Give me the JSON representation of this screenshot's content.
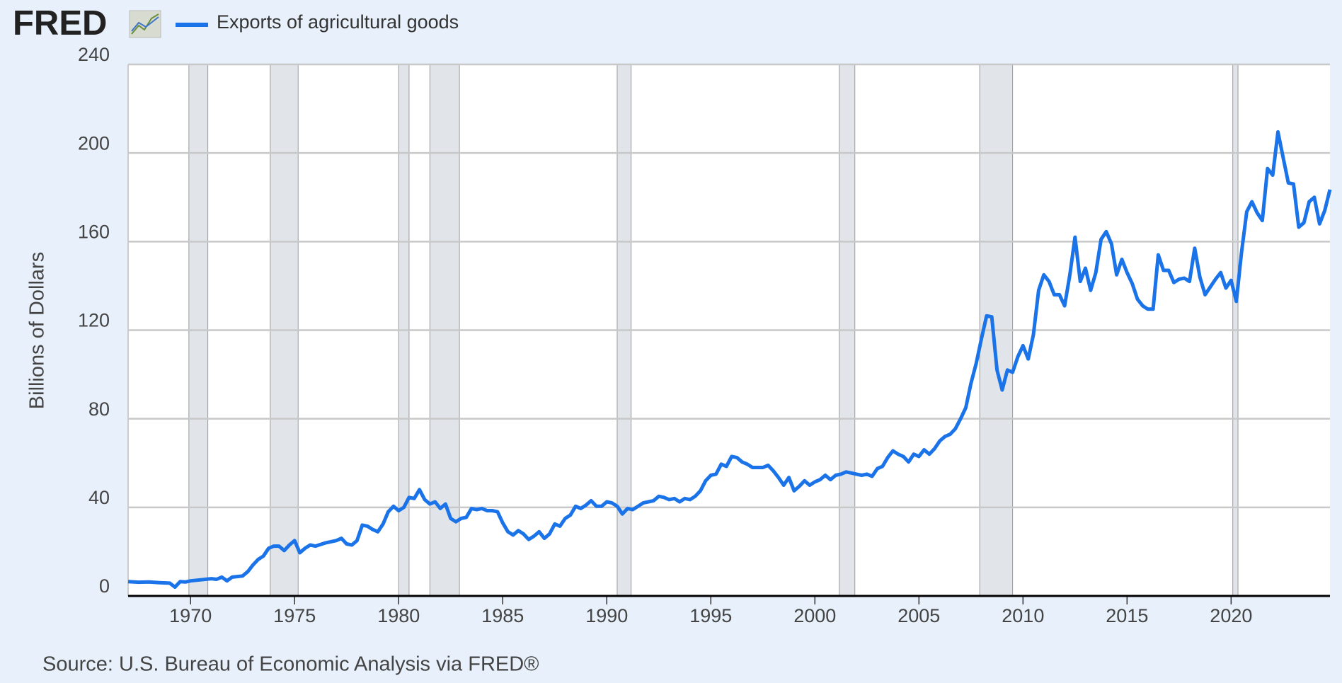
{
  "chart_data": {
    "type": "line",
    "logo": "FRED",
    "source": "Source: U.S. Bureau of Economic Analysis via FRED®",
    "ylabel": "Billions of Dollars",
    "xlim": [
      1967,
      2024.75
    ],
    "xticks": [
      1970,
      1975,
      1980,
      1985,
      1990,
      1995,
      2000,
      2005,
      2010,
      2015,
      2020
    ],
    "ylim": [
      0,
      240
    ],
    "yticks": [
      0,
      40,
      80,
      120,
      160,
      200,
      240
    ],
    "grid": true,
    "recessions": [
      [
        1969.92,
        1970.83
      ],
      [
        1973.83,
        1975.17
      ],
      [
        1980.0,
        1980.5
      ],
      [
        1981.5,
        1982.92
      ],
      [
        1990.5,
        1991.17
      ],
      [
        2001.17,
        2001.92
      ],
      [
        2007.92,
        2009.5
      ],
      [
        2020.08,
        2020.33
      ]
    ],
    "recession_color": "#e1e5ea",
    "x": [
      1967.0,
      1967.5,
      1968.0,
      1968.5,
      1969.0,
      1969.25,
      1969.5,
      1969.75,
      1970.0,
      1970.5,
      1971.0,
      1971.25,
      1971.5,
      1971.75,
      1972.0,
      1972.5,
      1972.75,
      1973.0,
      1973.25,
      1973.5,
      1973.75,
      1974.0,
      1974.25,
      1974.5,
      1974.75,
      1975.0,
      1975.25,
      1975.5,
      1975.75,
      1976.0,
      1976.5,
      1977.0,
      1977.25,
      1977.5,
      1977.75,
      1978.0,
      1978.25,
      1978.5,
      1978.75,
      1979.0,
      1979.25,
      1979.5,
      1979.75,
      1980.0,
      1980.25,
      1980.5,
      1980.75,
      1981.0,
      1981.25,
      1981.5,
      1981.75,
      1982.0,
      1982.25,
      1982.5,
      1982.75,
      1983.0,
      1983.25,
      1983.5,
      1983.75,
      1984.0,
      1984.25,
      1984.5,
      1984.75,
      1985.0,
      1985.25,
      1985.5,
      1985.75,
      1986.0,
      1986.25,
      1986.5,
      1986.75,
      1987.0,
      1987.25,
      1987.5,
      1987.75,
      1988.0,
      1988.25,
      1988.5,
      1988.75,
      1989.0,
      1989.25,
      1989.5,
      1989.75,
      1990.0,
      1990.25,
      1990.5,
      1990.75,
      1991.0,
      1991.25,
      1991.5,
      1991.75,
      1992.0,
      1992.25,
      1992.5,
      1992.75,
      1993.0,
      1993.25,
      1993.5,
      1993.75,
      1994.0,
      1994.25,
      1994.5,
      1994.75,
      1995.0,
      1995.25,
      1995.5,
      1995.75,
      1996.0,
      1996.25,
      1996.5,
      1996.75,
      1997.0,
      1997.25,
      1997.5,
      1997.75,
      1998.0,
      1998.25,
      1998.5,
      1998.75,
      1999.0,
      1999.25,
      1999.5,
      1999.75,
      2000.0,
      2000.25,
      2000.5,
      2000.75,
      2001.0,
      2001.25,
      2001.5,
      2001.75,
      2002.0,
      2002.25,
      2002.5,
      2002.75,
      2003.0,
      2003.25,
      2003.5,
      2003.75,
      2004.0,
      2004.25,
      2004.5,
      2004.75,
      2005.0,
      2005.25,
      2005.5,
      2005.75,
      2006.0,
      2006.25,
      2006.5,
      2006.75,
      2007.0,
      2007.25,
      2007.5,
      2007.75,
      2008.0,
      2008.25,
      2008.5,
      2008.75,
      2009.0,
      2009.25,
      2009.5,
      2009.75,
      2010.0,
      2010.25,
      2010.5,
      2010.75,
      2011.0,
      2011.25,
      2011.5,
      2011.75,
      2012.0,
      2012.25,
      2012.5,
      2012.75,
      2013.0,
      2013.25,
      2013.5,
      2013.75,
      2014.0,
      2014.25,
      2014.5,
      2014.75,
      2015.0,
      2015.25,
      2015.5,
      2015.75,
      2016.0,
      2016.25,
      2016.5,
      2016.75,
      2017.0,
      2017.25,
      2017.5,
      2017.75,
      2018.0,
      2018.25,
      2018.5,
      2018.75,
      2019.0,
      2019.25,
      2019.5,
      2019.75,
      2020.0,
      2020.25,
      2020.5,
      2020.75,
      2021.0,
      2021.25,
      2021.5,
      2021.75,
      2022.0,
      2022.25,
      2022.5,
      2022.75,
      2023.0,
      2023.25,
      2023.5,
      2023.75,
      2024.0,
      2024.25,
      2024.5,
      2024.75
    ],
    "series": [
      {
        "name": "Exports of agricultural goods",
        "color": "#1a73e8",
        "values": [
          6.5,
          6.2,
          6.3,
          6.0,
          5.8,
          4.0,
          6.5,
          6.3,
          6.8,
          7.3,
          7.8,
          7.5,
          8.5,
          6.8,
          8.5,
          9.0,
          11,
          14,
          16.5,
          18,
          21.5,
          22.5,
          22.5,
          20.5,
          23,
          25,
          19.5,
          21.5,
          23,
          22.5,
          24,
          25,
          26,
          23.5,
          23,
          25,
          32,
          31.5,
          30,
          29,
          32.5,
          38,
          40.5,
          38.5,
          40,
          44.5,
          44,
          48,
          43.5,
          41.5,
          42.5,
          39.5,
          41.5,
          35,
          33.5,
          35,
          35.5,
          39.5,
          39,
          39.5,
          38.5,
          38.5,
          38,
          33,
          29,
          27.5,
          29.5,
          28,
          25.5,
          27,
          29,
          26,
          28,
          32.5,
          31.5,
          35,
          36.5,
          40.5,
          39.5,
          41,
          43,
          40.5,
          40.5,
          42.5,
          42,
          40.5,
          37,
          39.5,
          39,
          40.5,
          42,
          42.5,
          43,
          45,
          44.5,
          43.5,
          44,
          42.5,
          44,
          43.5,
          45,
          47.5,
          52,
          54.5,
          55,
          59.5,
          58.5,
          63,
          62.5,
          60.5,
          59.5,
          58,
          58,
          58,
          59,
          56.5,
          53.5,
          50,
          53.5,
          47.5,
          49.5,
          52,
          50,
          51.5,
          52.5,
          54.5,
          52.5,
          54.5,
          55,
          56,
          55.5,
          55,
          54.5,
          55,
          54,
          57.5,
          58.5,
          62.5,
          65.5,
          64,
          63,
          60.5,
          64,
          63,
          66,
          64,
          66.5,
          70,
          72,
          73,
          75.5,
          80,
          85,
          96,
          105,
          116,
          126.5,
          126,
          102,
          93,
          102,
          101,
          108,
          113,
          107,
          118,
          138,
          145,
          142,
          136,
          136,
          131,
          145,
          162,
          142,
          148,
          138,
          146,
          161,
          164.5,
          159,
          145,
          152,
          146,
          141,
          134,
          131,
          129.5,
          129.5,
          154,
          147,
          147,
          141.5,
          143,
          143.5,
          142,
          157,
          144,
          136,
          139.5,
          143,
          146,
          139,
          142.5,
          133,
          155,
          173.5,
          178,
          173,
          169.5,
          193,
          190,
          209.5,
          198,
          186.5,
          186,
          166.5,
          168.5,
          178,
          180,
          168,
          174,
          183.5
        ]
      }
    ]
  }
}
